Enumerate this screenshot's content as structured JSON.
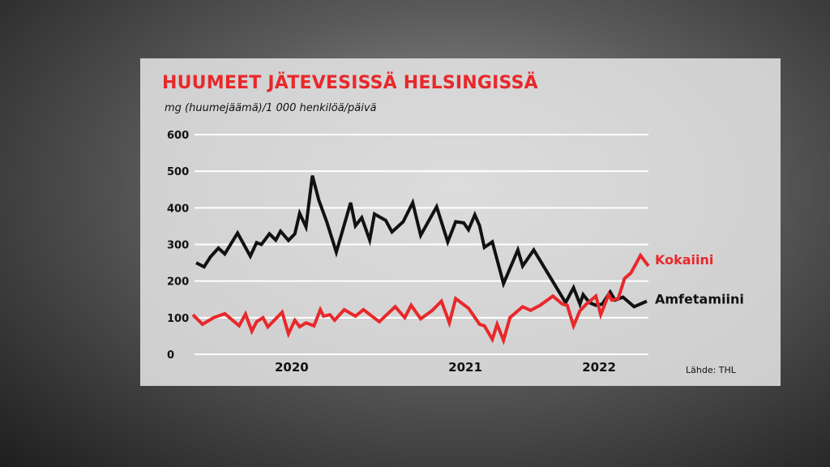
{
  "chart_data": {
    "type": "line",
    "title": "HUUMEET JÄTEVESISSÄ HELSINGISSÄ",
    "subtitle": "mg (huumejäämä)/1 000 henkilöä/päivä",
    "source": "Lähde: THL",
    "ylim": [
      0,
      600
    ],
    "yticks": [
      0,
      100,
      200,
      300,
      400,
      500,
      600
    ],
    "xlim": [
      2019.6,
      2022.45
    ],
    "xticks": [
      {
        "label": "2020",
        "value": 2020.21
      },
      {
        "label": "2021",
        "value": 2021.3
      },
      {
        "label": "2022",
        "value": 2022.14
      }
    ],
    "grid": true,
    "series": [
      {
        "name": "Amfetamiini",
        "color": "#111111",
        "x": [
          2019.61,
          2019.66,
          2019.7,
          2019.75,
          2019.79,
          2019.87,
          2019.95,
          2019.99,
          2020.02,
          2020.07,
          2020.11,
          2020.14,
          2020.19,
          2020.23,
          2020.26,
          2020.3,
          2020.34,
          2020.38,
          2020.43,
          2020.49,
          2020.58,
          2020.61,
          2020.65,
          2020.7,
          2020.73,
          2020.8,
          2020.84,
          2020.91,
          2020.97,
          2021.02,
          2021.12,
          2021.19,
          2021.24,
          2021.29,
          2021.32,
          2021.36,
          2021.39,
          2021.42,
          2021.47,
          2021.54,
          2021.63,
          2021.66,
          2021.73,
          2021.93,
          2021.98,
          2022.02,
          2022.04,
          2022.08,
          2022.12,
          2022.16,
          2022.21,
          2022.24,
          2022.29,
          2022.36,
          2022.44
        ],
        "y": [
          250,
          239,
          266,
          290,
          274,
          331,
          268,
          305,
          300,
          329,
          312,
          336,
          311,
          329,
          385,
          348,
          488,
          421,
          362,
          279,
          414,
          351,
          373,
          312,
          383,
          366,
          334,
          362,
          414,
          325,
          403,
          307,
          362,
          359,
          340,
          381,
          351,
          292,
          307,
          193,
          285,
          241,
          285,
          141,
          182,
          137,
          163,
          141,
          134,
          137,
          170,
          148,
          156,
          130,
          145
        ]
      },
      {
        "name": "Kokaiini",
        "color": "#e8282b",
        "x": [
          2019.59,
          2019.65,
          2019.72,
          2019.79,
          2019.88,
          2019.92,
          2019.96,
          2019.99,
          2020.03,
          2020.06,
          2020.15,
          2020.19,
          2020.23,
          2020.26,
          2020.3,
          2020.35,
          2020.39,
          2020.41,
          2020.45,
          2020.48,
          2020.54,
          2020.61,
          2020.66,
          2020.76,
          2020.86,
          2020.92,
          2020.96,
          2021.02,
          2021.09,
          2021.15,
          2021.2,
          2021.24,
          2021.32,
          2021.39,
          2021.42,
          2021.47,
          2021.5,
          2021.54,
          2021.58,
          2021.66,
          2021.71,
          2021.77,
          2021.85,
          2021.91,
          2021.94,
          2021.98,
          2022.02,
          2022.06,
          2022.12,
          2022.15,
          2022.2,
          2022.22,
          2022.26,
          2022.3,
          2022.34,
          2022.4,
          2022.45
        ],
        "y": [
          108,
          82,
          100,
          111,
          78,
          110,
          63,
          89,
          100,
          75,
          115,
          56,
          93,
          75,
          86,
          78,
          122,
          104,
          108,
          93,
          122,
          104,
          122,
          89,
          130,
          100,
          134,
          97,
          119,
          145,
          86,
          152,
          126,
          82,
          78,
          41,
          82,
          38,
          100,
          130,
          120,
          134,
          159,
          137,
          134,
          78,
          119,
          137,
          159,
          108,
          163,
          148,
          152,
          207,
          222,
          270,
          241
        ]
      }
    ]
  }
}
